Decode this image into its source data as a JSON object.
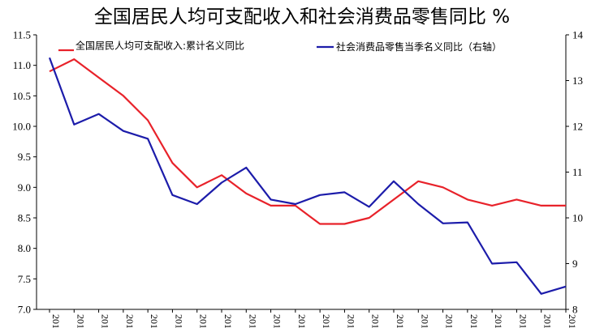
{
  "chart_data": {
    "type": "line",
    "title": "全国居民人均可支配收入和社会消费品零售同比 %",
    "x": [
      "201",
      "201",
      "201",
      "201",
      "201",
      "201",
      "201",
      "201",
      "201",
      "201",
      "201",
      "201",
      "201",
      "201",
      "201",
      "201",
      "201",
      "201",
      "201",
      "201",
      "201",
      "201"
    ],
    "left_axis": {
      "ylim": [
        7.0,
        11.5
      ],
      "ticks": [
        "7.0",
        "7.5",
        "8.0",
        "8.5",
        "9.0",
        "9.5",
        "10.0",
        "10.5",
        "11.0",
        "11.5"
      ]
    },
    "right_axis": {
      "ylim": [
        8,
        14
      ],
      "ticks": [
        "8",
        "9",
        "10",
        "11",
        "12",
        "13",
        "14"
      ]
    },
    "series": [
      {
        "name": "全国居民人均可支配收入:累计名义同比",
        "axis": "left",
        "color": "#e8222a",
        "values": [
          10.9,
          11.1,
          10.8,
          10.5,
          10.1,
          9.4,
          9.0,
          9.2,
          8.9,
          8.7,
          8.7,
          8.4,
          8.4,
          8.5,
          8.8,
          9.1,
          9.0,
          8.8,
          8.7,
          8.8,
          8.7,
          8.7
        ]
      },
      {
        "name": "社会消费品零售当季名义同比（右轴）",
        "axis": "right",
        "color": "#1c1caa",
        "values": [
          13.5,
          12.04,
          12.27,
          11.9,
          11.73,
          10.5,
          10.3,
          10.77,
          11.1,
          10.4,
          10.3,
          10.5,
          10.56,
          10.24,
          10.8,
          10.3,
          9.88,
          9.9,
          9.0,
          9.03,
          8.34,
          8.5
        ]
      }
    ],
    "legend_position": "top"
  }
}
